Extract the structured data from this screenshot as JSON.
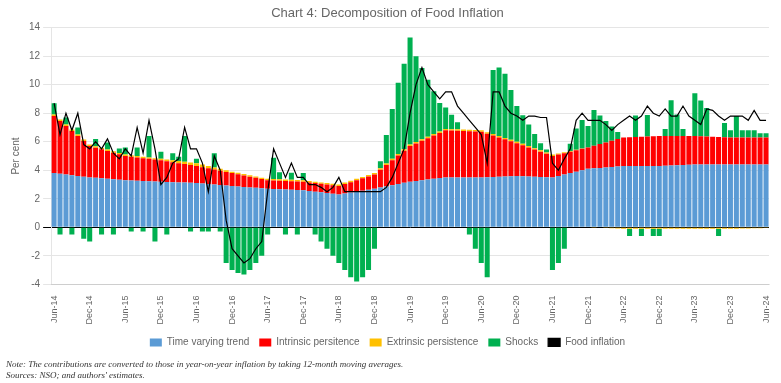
{
  "chart_data": {
    "type": "bar",
    "title": "Chart 4: Decomposition of Food Inflation",
    "ylabel": "Per cent",
    "categories": [
      "Jun-14",
      null,
      null,
      null,
      null,
      null,
      "Dec-14",
      null,
      null,
      null,
      null,
      null,
      "Jun-15",
      null,
      null,
      null,
      null,
      null,
      "Dec-15",
      null,
      null,
      null,
      null,
      null,
      "Jun-16",
      null,
      null,
      null,
      null,
      null,
      "Dec-16",
      null,
      null,
      null,
      null,
      null,
      "Jun-17",
      null,
      null,
      null,
      null,
      null,
      "Dec-17",
      null,
      null,
      null,
      null,
      null,
      "Jun-18",
      null,
      null,
      null,
      null,
      null,
      "Dec-18",
      null,
      null,
      null,
      null,
      null,
      "Jun-19",
      null,
      null,
      null,
      null,
      null,
      "Dec-19",
      null,
      null,
      null,
      null,
      null,
      "Jun-20",
      null,
      null,
      null,
      null,
      null,
      "Dec-20",
      null,
      null,
      null,
      null,
      null,
      "Jun-21",
      null,
      null,
      null,
      null,
      null,
      "Dec-21",
      null,
      null,
      null,
      null,
      null,
      "Jun-22",
      null,
      null,
      null,
      null,
      null,
      "Dec-22",
      null,
      null,
      null,
      null,
      null,
      "Jun-23",
      null,
      null,
      null,
      null,
      null,
      "Dec-23",
      null,
      null,
      null,
      null,
      null,
      "Jun-24"
    ],
    "series": [
      {
        "name": "Time varying trend",
        "color": "#5B9BD5",
        "values": [
          3.8,
          3.75,
          3.7,
          3.65,
          3.6,
          3.55,
          3.5,
          3.4667,
          3.4333,
          3.4,
          3.3667,
          3.3333,
          3.3,
          3.2833,
          3.2667,
          3.25,
          3.2333,
          3.2167,
          3.2,
          3.1833,
          3.1667,
          3.15,
          3.1333,
          3.1167,
          3.1,
          3.0667,
          3.0333,
          3.0,
          2.9667,
          2.9333,
          2.9,
          2.8667,
          2.8333,
          2.8,
          2.7667,
          2.7333,
          2.7,
          2.6833,
          2.6667,
          2.65,
          2.6333,
          2.6167,
          2.6,
          2.55,
          2.5,
          2.45,
          2.4,
          2.35,
          2.3,
          2.3667,
          2.4333,
          2.5,
          2.5667,
          2.6333,
          2.7,
          2.7833,
          2.8667,
          2.95,
          3.0333,
          3.1167,
          3.2,
          3.25,
          3.3,
          3.35,
          3.4,
          3.45,
          3.5,
          3.5,
          3.5,
          3.5,
          3.5,
          3.5,
          3.5,
          3.5167,
          3.5333,
          3.55,
          3.5667,
          3.5833,
          3.6,
          3.5833,
          3.5667,
          3.55,
          3.5333,
          3.5167,
          3.5,
          3.6,
          3.7,
          3.8,
          3.9,
          4.0,
          4.1,
          4.1333,
          4.1667,
          4.2,
          4.2333,
          4.2667,
          4.3,
          4.3,
          4.3,
          4.3,
          4.3,
          4.3,
          4.3,
          4.3167,
          4.3333,
          4.35,
          4.3667,
          4.3833,
          4.4,
          4.4,
          4.4,
          4.4,
          4.4,
          4.4,
          4.4,
          4.4,
          4.4,
          4.4,
          4.4,
          4.4,
          4.4
        ]
      },
      {
        "name": "Intrinsic persitence",
        "color": "#FF0000",
        "values": [
          4.0,
          3.7,
          3.4,
          3.1,
          2.8,
          2.5,
          2.2,
          2.1167,
          2.0333,
          1.95,
          1.8667,
          1.7833,
          1.7,
          1.6667,
          1.6333,
          1.6,
          1.5667,
          1.5333,
          1.5,
          1.45,
          1.4,
          1.35,
          1.3,
          1.25,
          1.2,
          1.15,
          1.1,
          1.05,
          1.0,
          0.95,
          0.9,
          0.85,
          0.8,
          0.75,
          0.7,
          0.65,
          0.6,
          0.6,
          0.6,
          0.6,
          0.6,
          0.6,
          0.6,
          0.6,
          0.6,
          0.6,
          0.6,
          0.6,
          0.6,
          0.6667,
          0.7333,
          0.8,
          0.8667,
          0.9333,
          1.0,
          1.25,
          1.5,
          1.75,
          2.0,
          2.25,
          2.5,
          2.6333,
          2.7667,
          2.9,
          3.0333,
          3.1667,
          3.3,
          3.2833,
          3.2667,
          3.25,
          3.2333,
          3.2167,
          3.2,
          3.05,
          2.9,
          2.75,
          2.6,
          2.45,
          2.3,
          2.1667,
          2.0333,
          1.9,
          1.7667,
          1.6333,
          1.5,
          1.5,
          1.5,
          1.5,
          1.5,
          1.5,
          1.5,
          1.5833,
          1.6667,
          1.75,
          1.8333,
          1.9167,
          2.0,
          2.0167,
          2.0333,
          2.05,
          2.0667,
          2.0833,
          2.1,
          2.0833,
          2.0667,
          2.05,
          2.0333,
          2.0167,
          2.0,
          1.9833,
          1.9667,
          1.95,
          1.9333,
          1.9167,
          1.9,
          1.9,
          1.9,
          1.9,
          1.9,
          1.9,
          1.9
        ]
      },
      {
        "name": "Extrinsic persistence",
        "color": "#FFC000",
        "values": [
          0.1,
          0.1,
          0.1,
          0.1,
          0.1,
          0.1,
          0.1,
          0.1,
          0.1,
          0.1,
          0.1,
          0.1,
          0.1,
          0.1,
          0.1,
          0.1,
          0.1,
          0.1,
          0.1,
          0.1167,
          0.1333,
          0.15,
          0.1667,
          0.1833,
          0.2,
          0.1833,
          0.1667,
          0.15,
          0.1333,
          0.1167,
          0.1,
          0.1,
          0.1,
          0.1,
          0.1,
          0.1,
          0.1,
          0.1,
          0.1,
          0.1,
          0.1,
          0.1,
          0.1,
          0.1,
          0.1,
          0.1,
          0.1,
          0.1,
          0.1,
          0.1,
          0.1,
          0.1,
          0.1,
          0.1,
          0.1,
          0.1,
          0.1,
          0.1,
          0.1,
          0.1,
          0.1,
          0.1,
          0.1,
          0.1,
          0.1,
          0.1,
          0.1,
          0.1,
          0.1,
          0.1,
          0.1,
          0.1,
          0.1,
          0.1,
          0.1,
          0.1,
          0.1,
          0.1,
          0.1,
          0.1,
          0.1,
          0.1,
          0.1,
          0.1,
          0.1,
          0.0833,
          0.0667,
          0.05,
          0.0333,
          0.0167,
          0.0,
          -0.0167,
          -0.0333,
          -0.05,
          -0.0667,
          -0.0833,
          -0.1,
          -0.1,
          -0.1,
          -0.1,
          -0.1,
          -0.1,
          -0.1,
          -0.1,
          -0.1,
          -0.1,
          -0.1,
          -0.1,
          -0.1,
          -0.1,
          -0.1,
          -0.1,
          -0.1,
          -0.1,
          -0.1,
          -0.0917,
          -0.0833,
          -0.075,
          -0.0667,
          -0.0583,
          -0.05
        ]
      },
      {
        "name": "Shocks",
        "color": "#00B050",
        "values": [
          0.8,
          -0.5,
          0.5,
          -0.5,
          0.5,
          -0.8,
          -1.0,
          0.5,
          -0.5,
          0.5,
          -0.5,
          0.3,
          0.5,
          -0.3,
          0.6,
          -0.3,
          1.5,
          -1.0,
          0.5,
          -0.5,
          0.5,
          0.3,
          1.8,
          -0.3,
          0.3,
          -0.3,
          -0.3,
          1.0,
          -0.3,
          -2.5,
          -3.0,
          -3.2,
          -3.3,
          -3.0,
          -2.5,
          -2.0,
          -0.5,
          1.5,
          0.5,
          -0.5,
          0.5,
          -0.5,
          0.5,
          0.0,
          -0.5,
          -1.0,
          -1.5,
          -2.0,
          -2.5,
          -3.0,
          -3.5,
          -3.8,
          -3.5,
          -3.0,
          -1.5,
          0.5,
          2.0,
          3.5,
          5.0,
          6.0,
          7.5,
          6.0,
          5.0,
          4.0,
          3.0,
          2.0,
          1.5,
          1.0,
          0.5,
          0.0,
          -0.5,
          -1.5,
          -2.5,
          -3.5,
          4.5,
          4.8,
          4.5,
          3.5,
          2.5,
          2.0,
          1.5,
          1.0,
          0.5,
          0.2,
          -3.0,
          -2.5,
          -1.5,
          0.5,
          1.5,
          2.0,
          1.5,
          2.5,
          2.0,
          1.5,
          1.0,
          0.5,
          0.0,
          -0.5,
          1.5,
          -0.5,
          1.5,
          -0.5,
          -0.5,
          0.5,
          2.5,
          1.5,
          0.5,
          0.0,
          3.0,
          2.5,
          2.0,
          0.0,
          -0.5,
          1.0,
          0.5,
          1.5,
          0.5,
          0.5,
          0.5,
          0.3,
          0.3
        ]
      },
      {
        "name": "Food inflation",
        "color": "#000000",
        "type": "line",
        "values": [
          8.7,
          6.5,
          8.0,
          6.8,
          8.0,
          5.8,
          5.5,
          6.0,
          5.5,
          6.2,
          5.2,
          4.8,
          5.5,
          5.0,
          7.0,
          5.2,
          7.5,
          5.5,
          3.0,
          3.5,
          4.5,
          4.8,
          7.0,
          5.5,
          5.5,
          4.5,
          2.5,
          5.0,
          4.0,
          0.5,
          -1.5,
          -2.0,
          -2.5,
          -2.2,
          -1.5,
          -1.0,
          2.5,
          5.5,
          4.5,
          3.5,
          4.5,
          3.5,
          3.5,
          3.0,
          3.0,
          2.8,
          2.5,
          2.8,
          3.5,
          2.5,
          2.5,
          2.5,
          2.5,
          2.5,
          2.5,
          2.5,
          2.8,
          3.5,
          4.5,
          5.5,
          8.0,
          10.0,
          11.2,
          10.0,
          9.5,
          9.0,
          9.5,
          9.5,
          8.5,
          8.0,
          7.5,
          7.0,
          6.5,
          4.5,
          9.5,
          9.5,
          8.5,
          8.0,
          7.8,
          7.5,
          7.8,
          7.8,
          7.7,
          7.7,
          4.5,
          4.0,
          4.8,
          5.5,
          7.5,
          8.0,
          7.5,
          7.5,
          7.5,
          7.2,
          6.8,
          7.2,
          7.5,
          7.8,
          7.5,
          7.8,
          8.5,
          8.0,
          7.8,
          8.3,
          7.8,
          7.8,
          8.5,
          7.8,
          7.5,
          7.2,
          8.3,
          8.2,
          7.8,
          7.5,
          7.8,
          7.8,
          7.8,
          7.5,
          8.2,
          7.5,
          7.5
        ]
      }
    ],
    "stacked": true,
    "ylim": [
      -4,
      14
    ],
    "yticks": [
      -4,
      -2,
      0,
      2,
      4,
      6,
      8,
      10,
      12,
      14
    ],
    "grid": true,
    "legend": "bottom",
    "annotations": [
      "Note: The contributions are converted to those in year-on-year inflation by taking 12-month moving averages.",
      "Sources: NSO; and authors' estimates."
    ]
  }
}
